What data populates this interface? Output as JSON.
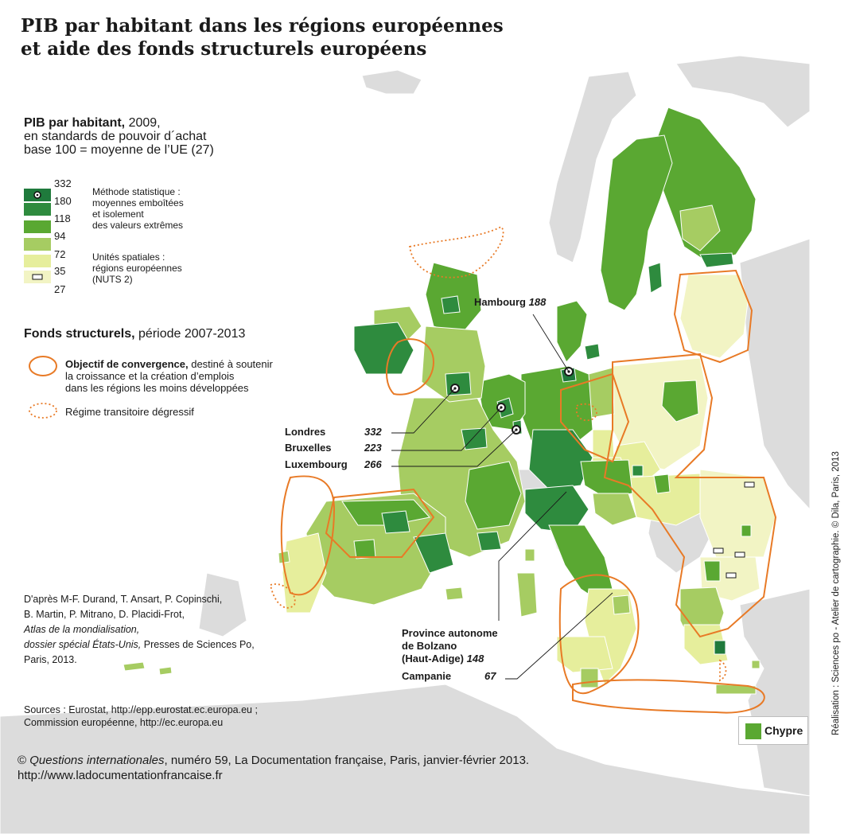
{
  "title": {
    "line1": "PIB par habitant dans les régions européennes",
    "line2": "et aide des fonds structurels européens"
  },
  "colors": {
    "land_outside": "#dcdcdc",
    "class_332": "#1f7a3c",
    "class_180": "#2e8b3e",
    "class_118": "#5aa832",
    "class_94": "#a6cc62",
    "class_72": "#e6ee9c",
    "class_35": "#f2f4c4",
    "convergence": "#e87a26"
  },
  "gdp_legend": {
    "heading_bold": "PIB par habitant,",
    "heading_rest": " 2009,",
    "line2": "en standards de pouvoir d´achat",
    "line3": "base 100 = moyenne de l’UE (27)",
    "values": [
      "332",
      "180",
      "118",
      "94",
      "72",
      "35",
      "27"
    ],
    "method_note": [
      "Méthode statistique :",
      "moyennes emboîtées",
      "et isolement",
      "des valeurs extrêmes"
    ],
    "units_note": [
      "Unités spatiales :",
      "régions européennes",
      "(NUTS 2)"
    ]
  },
  "funds_legend": {
    "heading_bold": "Fonds structurels,",
    "heading_rest": " période 2007-2013",
    "convergence_bold": "Objectif de convergence,",
    "convergence_rest": " destiné à soutenir",
    "convergence_line2": "la croissance et la création d’emplois",
    "convergence_line3": "dans les régions les moins développées",
    "transitional": "Régime transitoire dégressif"
  },
  "callouts": {
    "hambourg": {
      "name": "Hambourg",
      "value": "188"
    },
    "londres": {
      "name": "Londres",
      "value": "332"
    },
    "bruxelles": {
      "name": "Bruxelles",
      "value": "223"
    },
    "luxembourg": {
      "name": "Luxembourg",
      "value": "266"
    },
    "bolzano": {
      "line1": "Province autonome",
      "line2": "de Bolzano",
      "line3": "(Haut-Adige)",
      "value": "148"
    },
    "campanie": {
      "name": "Campanie",
      "value": "67"
    }
  },
  "chypre_label": "Chypre",
  "credit": {
    "line1": "D'après M-F. Durand, T. Ansart, P. Copinschi,",
    "line2": "B. Martin, P. Mitrano, D. Placidi-Frot,",
    "line3": "Atlas de la mondialisation,",
    "line4_italic": "dossier spécial États-Unis,",
    "line4_rest": " Presses de Sciences Po,",
    "line5": "Paris, 2013."
  },
  "sources": {
    "line1": "Sources : Eurostat, http://epp.eurostat.ec.europa.eu ;",
    "line2": "Commission européenne, http://ec.europa.eu"
  },
  "footer": {
    "copyright": "© ",
    "publication_italic": "Questions internationales",
    "rest": ", numéro 59, La Documentation française, Paris, janvier-février 2013.",
    "url": "http://www.ladocumentationfrancaise.fr"
  },
  "vertical_credit": "Réalisation : Sciences po - Atelier de cartographie. © Dila, Paris, 2013"
}
